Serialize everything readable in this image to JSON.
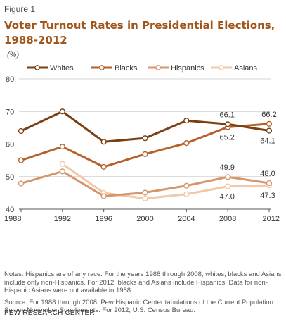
{
  "figure_label": "Figure 1",
  "title_line1": "Voter Turnout Rates in Presidential Elections,",
  "title_line2": "1988-2012",
  "unit": "(%)",
  "notes": "Notes: Hispanics are of any race. For the years 1988 through 2008, whites, blacks and Asians include only non-Hispanics. For 2012, blacks and Asians include Hispanics. Data for non-Hispanic Asians were not available in 1988.",
  "source": "Source: For 1988 through 2008, Pew Hispanic Center tabulations of the Current Population Survey November Supplements. For 2012, U.S. Census Bureau.",
  "organization": "PEW RESEARCH CENTER",
  "chart_data": {
    "type": "line",
    "title": "Voter Turnout Rates in Presidential Elections, 1988-2012",
    "ylabel": "(%)",
    "xlabel": "",
    "x": [
      "1988",
      "1992",
      "1996",
      "2000",
      "2004",
      "2008",
      "2012"
    ],
    "y_ticks": [
      "40",
      "50",
      "60",
      "70",
      "80"
    ],
    "ylim": [
      40,
      80
    ],
    "grid": true,
    "legend_position": "top",
    "series": [
      {
        "name": "Whites",
        "color": "#7b3f12",
        "values": [
          64.0,
          70.0,
          60.7,
          61.8,
          67.2,
          66.1,
          64.1
        ]
      },
      {
        "name": "Blacks",
        "color": "#b4622a",
        "values": [
          55.0,
          59.2,
          53.0,
          56.9,
          60.3,
          65.2,
          66.2
        ]
      },
      {
        "name": "Hispanics",
        "color": "#d8956a",
        "values": [
          47.9,
          51.6,
          44.0,
          45.1,
          47.2,
          49.9,
          48.0
        ]
      },
      {
        "name": "Asians",
        "color": "#f0c9a8",
        "values": [
          null,
          53.9,
          45.0,
          43.3,
          44.6,
          47.0,
          47.3
        ]
      }
    ],
    "data_labels": [
      {
        "series": "Whites",
        "x": "2008",
        "text": "66.1"
      },
      {
        "series": "Blacks",
        "x": "2008",
        "text": "65.2"
      },
      {
        "series": "Blacks",
        "x": "2012",
        "text": "66.2"
      },
      {
        "series": "Whites",
        "x": "2012",
        "text": "64.1"
      },
      {
        "series": "Hispanics",
        "x": "2008",
        "text": "49.9"
      },
      {
        "series": "Asians",
        "x": "2008",
        "text": "47.0"
      },
      {
        "series": "Hispanics",
        "x": "2012",
        "text": "48.0"
      },
      {
        "series": "Asians",
        "x": "2012",
        "text": "47.3"
      }
    ]
  }
}
